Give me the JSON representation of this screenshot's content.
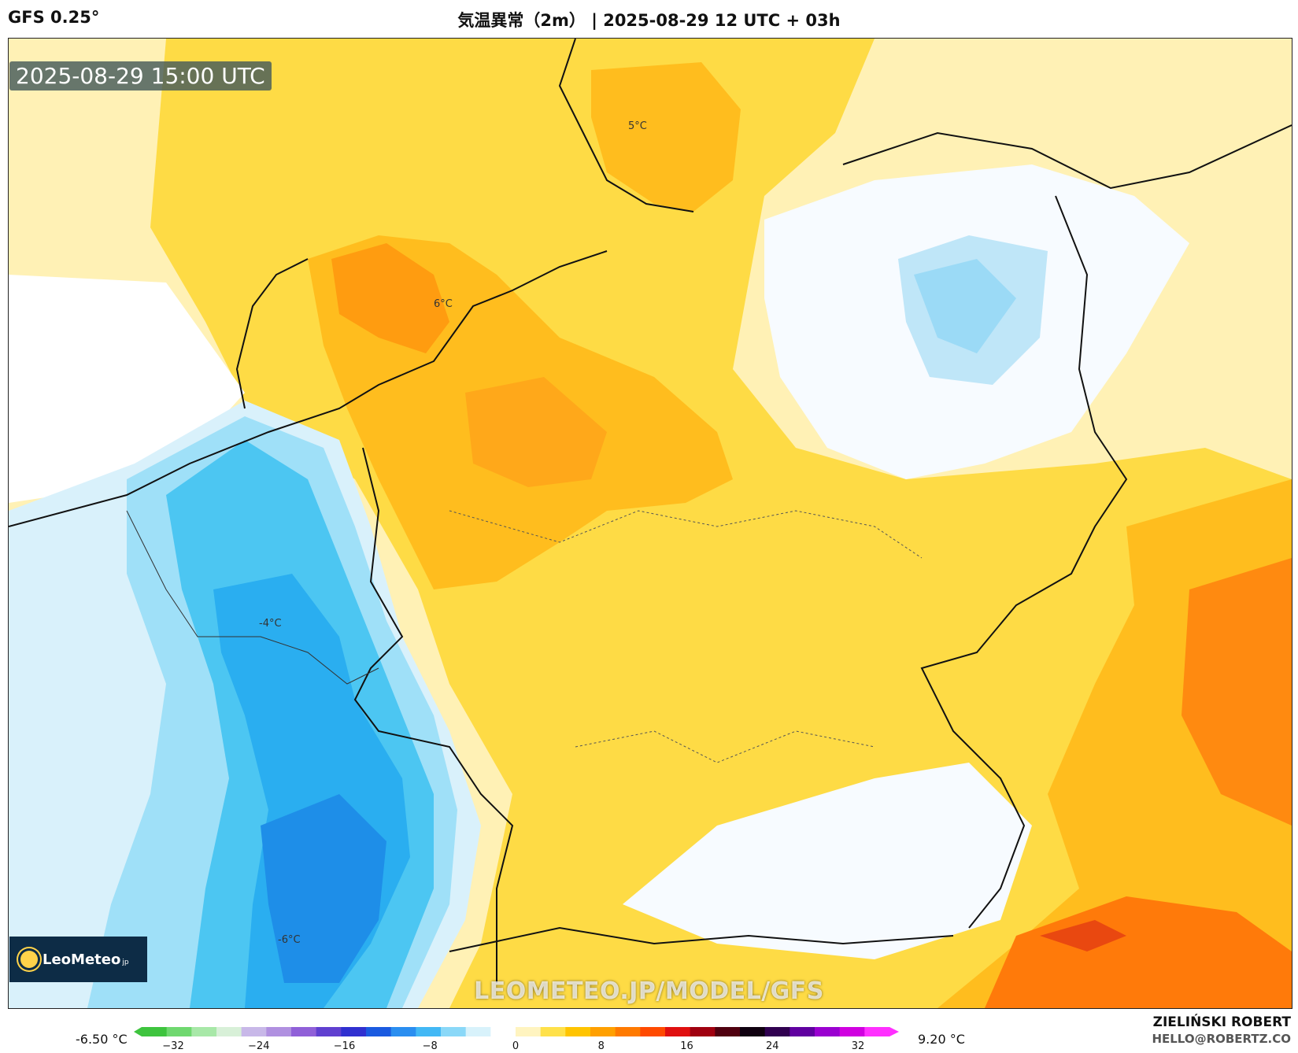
{
  "header": {
    "model": "GFS 0.25°",
    "title": "気温異常（2m） | 2025-08-29 12 UTC + 03h"
  },
  "map": {
    "valid_time": "2025-08-29 15:00 UTC",
    "logo": {
      "name": "LeoMeteo",
      "suffix": "jp"
    },
    "watermark": "LEOMETEO.JP/MODEL/GFS",
    "labels": {
      "l1": "5°C",
      "l2": "6°C",
      "l3": "-4°C",
      "l4": "-6°C"
    }
  },
  "colorbar": {
    "min_label": "-6.50 °C",
    "max_label": "9.20 °C",
    "ticks": [
      "−32",
      "−24",
      "−16",
      "−8",
      "0",
      "8",
      "16",
      "24",
      "32"
    ],
    "colors": [
      "#3ec43e",
      "#6fd86f",
      "#a8e8a8",
      "#d8f0d8",
      "#c8b8e8",
      "#b090e0",
      "#9060d8",
      "#6040d0",
      "#3030d0",
      "#1a5ae0",
      "#2a8ef0",
      "#42b8f5",
      "#8ad8f8",
      "#d8f2fb",
      "#ffffff",
      "#fff4c0",
      "#ffe14a",
      "#ffc400",
      "#ffa000",
      "#ff7a00",
      "#ff4a00",
      "#e01010",
      "#a00010",
      "#500010",
      "#100010",
      "#300050",
      "#6000a0",
      "#9a00d0",
      "#d000e0",
      "#ff30ff"
    ]
  },
  "credits": {
    "author": "ZIELIŃSKI ROBERT",
    "email": "HELLO@ROBERTZ.CO"
  }
}
